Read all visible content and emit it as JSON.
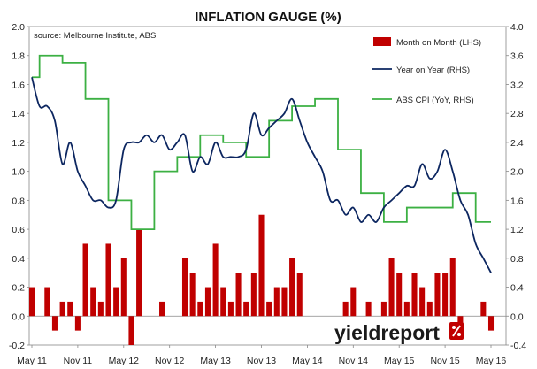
{
  "chart_data": {
    "type": "bar",
    "title": "INFLATION GAUGE (%)",
    "source": "source: Melbourne Institute, ABS",
    "watermark": "yieldreport",
    "x_tick_labels": [
      "May 11",
      "Nov 11",
      "May 12",
      "Nov 12",
      "May 13",
      "Nov 13",
      "May 14",
      "Nov 14",
      "May 15",
      "Nov 15",
      "May 16"
    ],
    "y_left": {
      "lim": [
        -0.2,
        2.0
      ],
      "ticks": [
        "-0.2",
        "0.0",
        "0.2",
        "0.4",
        "0.6",
        "0.8",
        "1.0",
        "1.2",
        "1.4",
        "1.6",
        "1.8",
        "2.0"
      ]
    },
    "y_right": {
      "lim": [
        -0.4,
        4.0
      ],
      "ticks": [
        "-0.4",
        "0.0",
        "0.4",
        "0.8",
        "1.2",
        "1.6",
        "2.0",
        "2.4",
        "2.8",
        "3.2",
        "3.6",
        "4.0"
      ]
    },
    "legend": {
      "position": "top-right",
      "items": [
        {
          "label": "Month on Month (LHS)",
          "kind": "bar",
          "color": "#c00000"
        },
        {
          "label": "Year on Year (RHS)",
          "kind": "line",
          "color": "#0c2660"
        },
        {
          "label": "ABS CPI (YoY, RHS)",
          "kind": "line",
          "color": "#3cb043"
        }
      ]
    },
    "series": [
      {
        "name": "Month on Month (LHS)",
        "axis": "left",
        "type": "bar",
        "color": "#c00000",
        "x": [
          "May 11",
          "Jun 11",
          "Jul 11",
          "Aug 11",
          "Sep 11",
          "Oct 11",
          "Nov 11",
          "Dec 11",
          "Jan 12",
          "Feb 12",
          "Mar 12",
          "Apr 12",
          "May 12",
          "Jun 12",
          "Jul 12",
          "Aug 12",
          "Sep 12",
          "Oct 12",
          "Nov 12",
          "Dec 12",
          "Jan 13",
          "Feb 13",
          "Mar 13",
          "Apr 13",
          "May 13",
          "Jun 13",
          "Jul 13",
          "Aug 13",
          "Sep 13",
          "Oct 13",
          "Nov 13",
          "Dec 13",
          "Jan 14",
          "Feb 14",
          "Mar 14",
          "Apr 14",
          "May 14",
          "Jun 14",
          "Jul 14",
          "Aug 14",
          "Sep 14",
          "Oct 14",
          "Nov 14",
          "Dec 14",
          "Jan 15",
          "Feb 15",
          "Mar 15",
          "Apr 15",
          "May 15",
          "Jun 15",
          "Jul 15",
          "Aug 15",
          "Sep 15",
          "Oct 15",
          "Nov 15",
          "Dec 15",
          "Jan 16",
          "Feb 16",
          "Mar 16",
          "Apr 16",
          "May 16"
        ],
        "values": [
          0.2,
          0.0,
          0.2,
          -0.1,
          0.1,
          0.1,
          -0.1,
          0.5,
          0.2,
          0.1,
          0.5,
          0.2,
          0.4,
          -0.2,
          0.6,
          0.0,
          0.0,
          0.1,
          0.0,
          0.0,
          0.4,
          0.3,
          0.1,
          0.2,
          0.5,
          0.2,
          0.1,
          0.3,
          0.1,
          0.3,
          0.7,
          0.1,
          0.2,
          0.2,
          0.4,
          0.3,
          0.0,
          0.0,
          0.0,
          0.0,
          0.0,
          0.1,
          0.2,
          0.0,
          0.1,
          0.0,
          0.1,
          0.4,
          0.3,
          0.1,
          0.3,
          0.2,
          0.1,
          0.3,
          0.3,
          0.4,
          -0.1,
          0.0,
          0.0,
          0.1,
          -0.1
        ]
      },
      {
        "name": "Year on Year (RHS)",
        "axis": "right",
        "type": "line",
        "color": "#0c2660",
        "x": [
          "May 11",
          "Jun 11",
          "Jul 11",
          "Aug 11",
          "Sep 11",
          "Oct 11",
          "Nov 11",
          "Dec 11",
          "Jan 12",
          "Feb 12",
          "Mar 12",
          "Apr 12",
          "May 12",
          "Jun 12",
          "Jul 12",
          "Aug 12",
          "Sep 12",
          "Oct 12",
          "Nov 12",
          "Dec 12",
          "Jan 13",
          "Feb 13",
          "Mar 13",
          "Apr 13",
          "May 13",
          "Jun 13",
          "Jul 13",
          "Aug 13",
          "Sep 13",
          "Oct 13",
          "Nov 13",
          "Dec 13",
          "Jan 14",
          "Feb 14",
          "Mar 14",
          "Apr 14",
          "May 14",
          "Jun 14",
          "Jul 14",
          "Aug 14",
          "Sep 14",
          "Oct 14",
          "Nov 14",
          "Dec 14",
          "Jan 15",
          "Feb 15",
          "Mar 15",
          "Apr 15",
          "May 15",
          "Jun 15",
          "Jul 15",
          "Aug 15",
          "Sep 15",
          "Oct 15",
          "Nov 15",
          "Dec 15",
          "Jan 16",
          "Feb 16",
          "Mar 16",
          "Apr 16",
          "May 16"
        ],
        "values": [
          3.3,
          2.9,
          2.9,
          2.7,
          2.1,
          2.4,
          2.0,
          1.8,
          1.6,
          1.6,
          1.5,
          1.6,
          2.3,
          2.4,
          2.4,
          2.5,
          2.4,
          2.5,
          2.3,
          2.4,
          2.5,
          2.0,
          2.2,
          2.1,
          2.4,
          2.2,
          2.2,
          2.2,
          2.3,
          2.8,
          2.5,
          2.6,
          2.7,
          2.8,
          3.0,
          2.7,
          2.4,
          2.2,
          2.0,
          1.6,
          1.6,
          1.4,
          1.5,
          1.3,
          1.4,
          1.3,
          1.5,
          1.6,
          1.7,
          1.8,
          1.8,
          2.1,
          1.9,
          2.0,
          2.3,
          2.0,
          1.6,
          1.4,
          1.0,
          0.8,
          0.6
        ]
      },
      {
        "name": "ABS CPI (YoY, RHS)",
        "axis": "right",
        "type": "step-line",
        "color": "#3cb043",
        "x": [
          "May 11",
          "Jun 11",
          "Sep 11",
          "Dec 11",
          "Mar 12",
          "Jun 12",
          "Sep 12",
          "Dec 12",
          "Mar 13",
          "Jun 13",
          "Sep 13",
          "Dec 13",
          "Mar 14",
          "Jun 14",
          "Sep 14",
          "Dec 14",
          "Mar 15",
          "Jun 15",
          "Sep 15",
          "Dec 15",
          "Mar 16",
          "May 16"
        ],
        "values": [
          3.3,
          3.6,
          3.5,
          3.0,
          1.6,
          1.2,
          2.0,
          2.2,
          2.5,
          2.4,
          2.2,
          2.7,
          2.9,
          3.0,
          2.3,
          1.7,
          1.3,
          1.5,
          1.5,
          1.7,
          1.3,
          1.3
        ]
      }
    ]
  }
}
